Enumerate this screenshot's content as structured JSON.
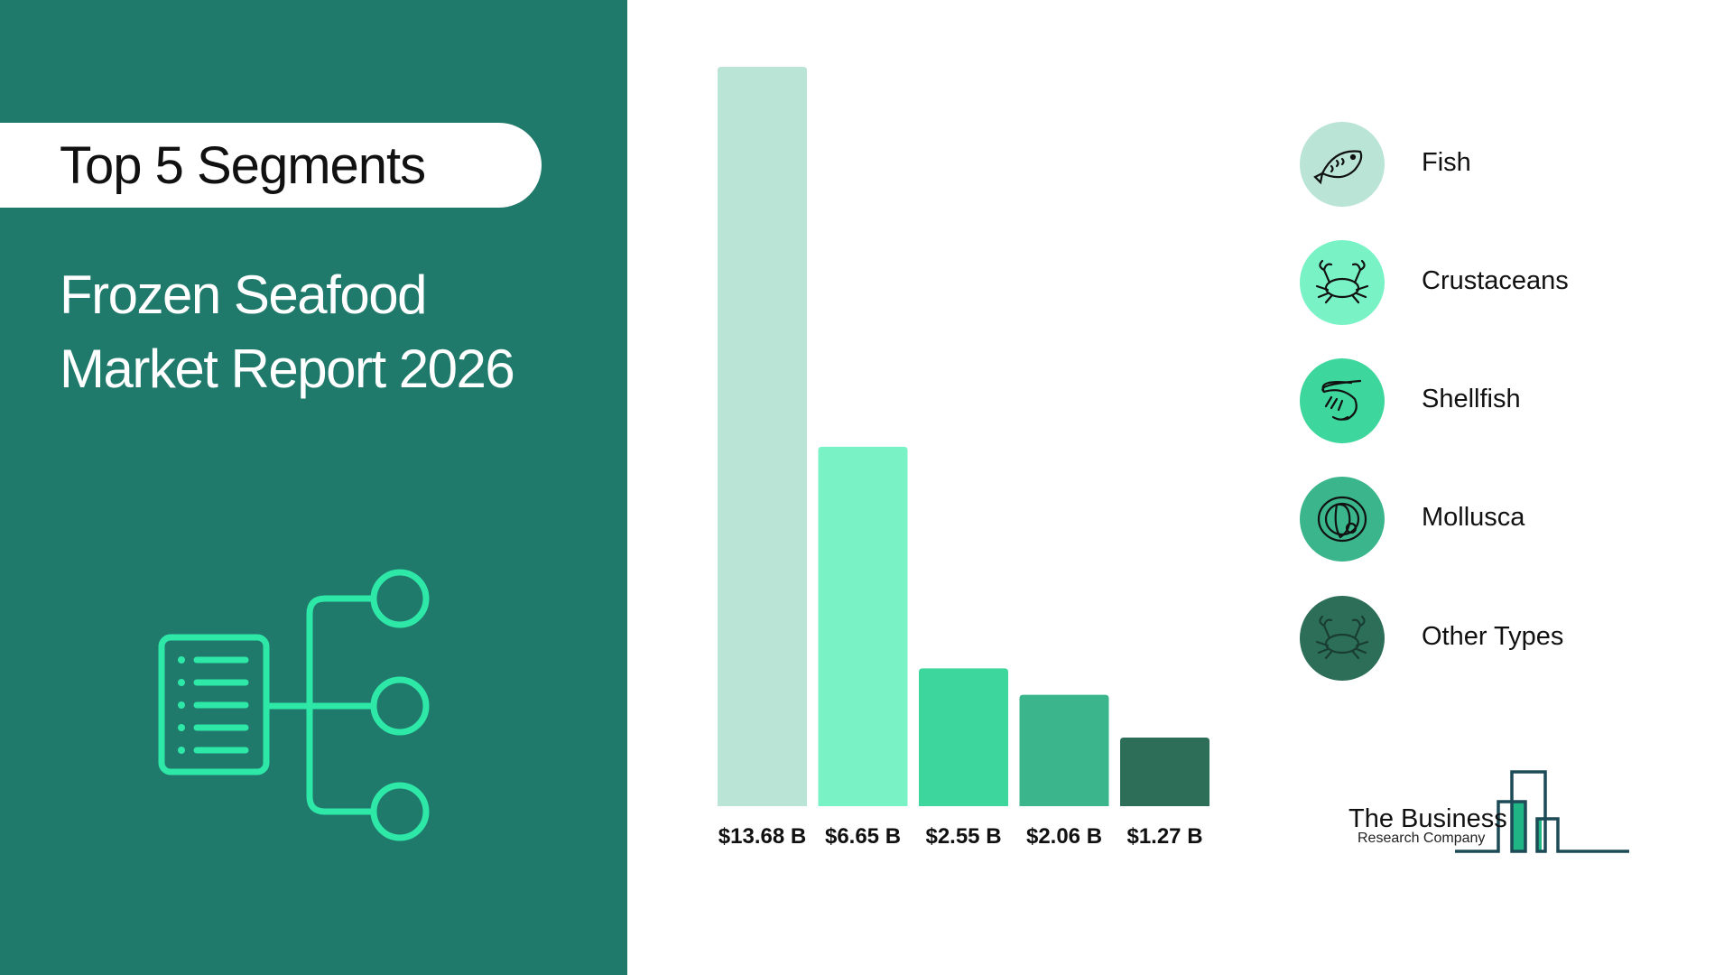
{
  "header": {
    "pill_title": "Top 5 Segments",
    "title_line1": "Frozen Seafood",
    "title_line2": "Market Report 2026"
  },
  "chart_data": {
    "type": "bar",
    "categories": [
      "Fish",
      "Crustaceans",
      "Shellfish",
      "Mollusca",
      "Other Types"
    ],
    "values": [
      13.68,
      6.65,
      2.55,
      2.06,
      1.27
    ],
    "value_labels": [
      "$13.68 B",
      "$6.65 B",
      "$2.55 B",
      "$2.06 B",
      "$1.27 B"
    ],
    "unit": "$ B",
    "colors": [
      "#b9e4d6",
      "#79f2c6",
      "#3dd69d",
      "#3bb58b",
      "#2c6e58"
    ],
    "legend_position": "right",
    "grid": false
  },
  "legend": [
    {
      "label": "Fish",
      "icon": "fish-icon"
    },
    {
      "label": "Crustaceans",
      "icon": "crab-icon"
    },
    {
      "label": "Shellfish",
      "icon": "shrimp-icon"
    },
    {
      "label": "Mollusca",
      "icon": "fish-plate-icon"
    },
    {
      "label": "Other Types",
      "icon": "crab-icon"
    }
  ],
  "logo": {
    "line1": "The Business",
    "line2": "Research Company"
  },
  "colors": {
    "panel": "#1f7a6c",
    "accent": "#2ee8a8"
  }
}
